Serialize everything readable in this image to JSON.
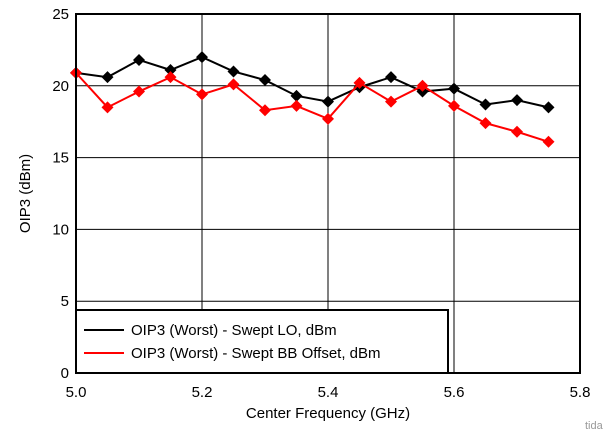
{
  "chart_data": {
    "type": "line",
    "title": "",
    "xlabel": "Center Frequency (GHz)",
    "ylabel": "OIP3 (dBm)",
    "xlim": [
      5.0,
      5.8
    ],
    "ylim": [
      0,
      25
    ],
    "xticks": [
      5.0,
      5.2,
      5.4,
      5.6,
      5.8
    ],
    "xtick_labels": [
      "5.0",
      "5.2",
      "5.4",
      "5.6",
      "5.8"
    ],
    "yticks": [
      0,
      5,
      10,
      15,
      20,
      25
    ],
    "ytick_labels": [
      "0",
      "5",
      "10",
      "15",
      "20",
      "25"
    ],
    "grid": true,
    "legend_position": "bottom-left",
    "series": [
      {
        "name": "OIP3 (Worst) - Swept LO, dBm",
        "color": "#000000",
        "marker": "diamond",
        "x": [
          5.0,
          5.05,
          5.1,
          5.15,
          5.2,
          5.25,
          5.3,
          5.35,
          5.4,
          5.45,
          5.5,
          5.55,
          5.6,
          5.65,
          5.7,
          5.75
        ],
        "y": [
          20.9,
          20.6,
          21.8,
          21.1,
          22.0,
          21.0,
          20.4,
          19.3,
          18.9,
          19.9,
          20.6,
          19.6,
          19.8,
          18.7,
          19.0,
          18.5
        ]
      },
      {
        "name": "OIP3 (Worst) - Swept BB Offset, dBm",
        "color": "#ff0000",
        "marker": "diamond",
        "x": [
          5.0,
          5.05,
          5.1,
          5.15,
          5.2,
          5.25,
          5.3,
          5.35,
          5.4,
          5.45,
          5.5,
          5.55,
          5.6,
          5.65,
          5.7,
          5.75
        ],
        "y": [
          20.9,
          18.5,
          19.6,
          20.6,
          19.4,
          20.1,
          18.3,
          18.6,
          17.7,
          20.2,
          18.9,
          20.0,
          18.6,
          17.4,
          16.8,
          16.1
        ]
      }
    ],
    "watermark": "tida"
  }
}
